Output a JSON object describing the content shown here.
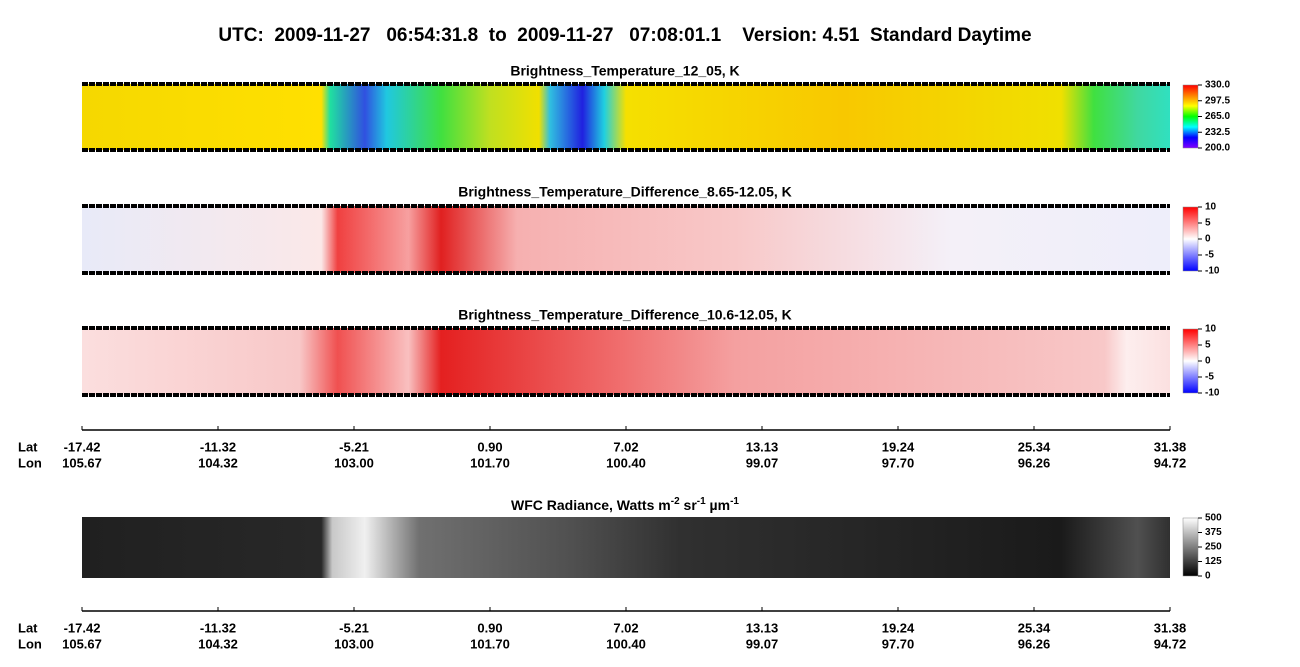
{
  "header": "UTC:  2009-11-27   06:54:31.8  to  2009-11-27   07:08:01.1    Version: 4.51  Standard Daytime",
  "chart_data": [
    {
      "type": "heatmap",
      "title": "Brightness_Temperature_12_05, K",
      "colorbar": {
        "lim": [
          200,
          330
        ],
        "colors": [
          "#8000ff",
          "#0000ff",
          "#00ffff",
          "#00ff00",
          "#ffff00",
          "#ff8000",
          "#ff0000"
        ],
        "ticks": [
          {
            "value": 330,
            "label": "330.0"
          },
          297.5,
          {
            "value": 265,
            "label": "265.0"
          },
          232.5,
          {
            "value": 200,
            "label": "200.0"
          }
        ]
      }
    },
    {
      "type": "heatmap",
      "title": "Brightness_Temperature_Difference_8.65-12.05, K",
      "colorbar": {
        "lim": [
          -10,
          10
        ],
        "colors": [
          "#0000ff",
          "#ffffff",
          "#ff0000"
        ],
        "ticks": [
          10,
          5,
          0,
          -5,
          -10
        ]
      }
    },
    {
      "type": "heatmap",
      "title": "Brightness_Temperature_Difference_10.6-12.05, K",
      "colorbar": {
        "lim": [
          -10,
          10
        ],
        "colors": [
          "#0000ff",
          "#ffffff",
          "#ff0000"
        ],
        "ticks": [
          10,
          5,
          0,
          -5,
          -10
        ]
      }
    },
    {
      "type": "heatmap",
      "title": [
        "WFC Radiance, Watts m",
        "-2",
        " sr",
        "-1",
        " µm",
        "-1"
      ],
      "colorbar": {
        "lim": [
          0,
          500
        ],
        "colors": [
          "#000000",
          "#ffffff"
        ],
        "ticks": [
          500,
          375,
          250,
          125,
          0
        ]
      }
    }
  ],
  "axes": [
    {
      "lat_label": "Lat",
      "lon_label": "Lon",
      "lat": [
        -17.42,
        -11.32,
        -5.21,
        {
          "value": 0.9,
          "label": "0.90"
        },
        7.02,
        13.13,
        19.24,
        25.34,
        31.38
      ],
      "lon": [
        105.67,
        104.32,
        {
          "value": 103,
          "label": "103.00"
        },
        {
          "value": 101.7,
          "label": "101.70"
        },
        {
          "value": 100.4,
          "label": "100.40"
        },
        99.07,
        {
          "value": 97.7,
          "label": "97.70"
        },
        96.26,
        94.72
      ]
    },
    {
      "lat_label": "Lat",
      "lon_label": "Lon",
      "lat": [
        -17.42,
        -11.32,
        -5.21,
        {
          "value": 0.9,
          "label": "0.90"
        },
        7.02,
        13.13,
        19.24,
        25.34,
        31.38
      ],
      "lon": [
        105.67,
        104.32,
        {
          "value": 103,
          "label": "103.00"
        },
        {
          "value": 101.7,
          "label": "101.70"
        },
        {
          "value": 100.4,
          "label": "100.40"
        },
        99.07,
        {
          "value": 97.7,
          "label": "97.70"
        },
        96.26,
        94.72
      ]
    }
  ]
}
